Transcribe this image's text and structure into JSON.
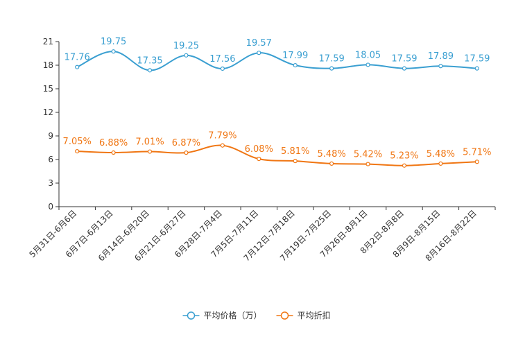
{
  "chart_data": {
    "type": "line",
    "title": "",
    "xlabel": "",
    "ylabel": "",
    "ylim": [
      0,
      21
    ],
    "yticks": [
      0,
      3,
      6,
      9,
      12,
      15,
      18,
      21
    ],
    "categories": [
      "5月31日-6月6日",
      "6月7日-6月13日",
      "6月14日-6月20日",
      "6月21日-6月27日",
      "6月28日-7月4日",
      "7月5日-7月11日",
      "7月12日-7月18日",
      "7月19日-7月25日",
      "7月26日-8月1日",
      "8月2日-8月8日",
      "8月9日-8月15日",
      "8月16日-8月22日"
    ],
    "series": [
      {
        "name": "平均价格（万）",
        "color": "#3a9fd1",
        "values": [
          17.76,
          19.75,
          17.35,
          19.25,
          17.56,
          19.57,
          17.99,
          17.59,
          18.05,
          17.59,
          17.89,
          17.59
        ],
        "labels": [
          "17.76",
          "19.75",
          "17.35",
          "19.25",
          "17.56",
          "19.57",
          "17.99",
          "17.59",
          "18.05",
          "17.59",
          "17.89",
          "17.59"
        ]
      },
      {
        "name": "平均折扣",
        "color": "#f07613",
        "values": [
          7.05,
          6.88,
          7.01,
          6.87,
          7.79,
          6.08,
          5.81,
          5.48,
          5.42,
          5.23,
          5.48,
          5.71
        ],
        "labels": [
          "7.05%",
          "6.88%",
          "7.01%",
          "6.87%",
          "7.79%",
          "6.08%",
          "5.81%",
          "5.48%",
          "5.42%",
          "5.23%",
          "5.48%",
          "5.71%"
        ]
      }
    ],
    "legend_position": "bottom-center"
  }
}
